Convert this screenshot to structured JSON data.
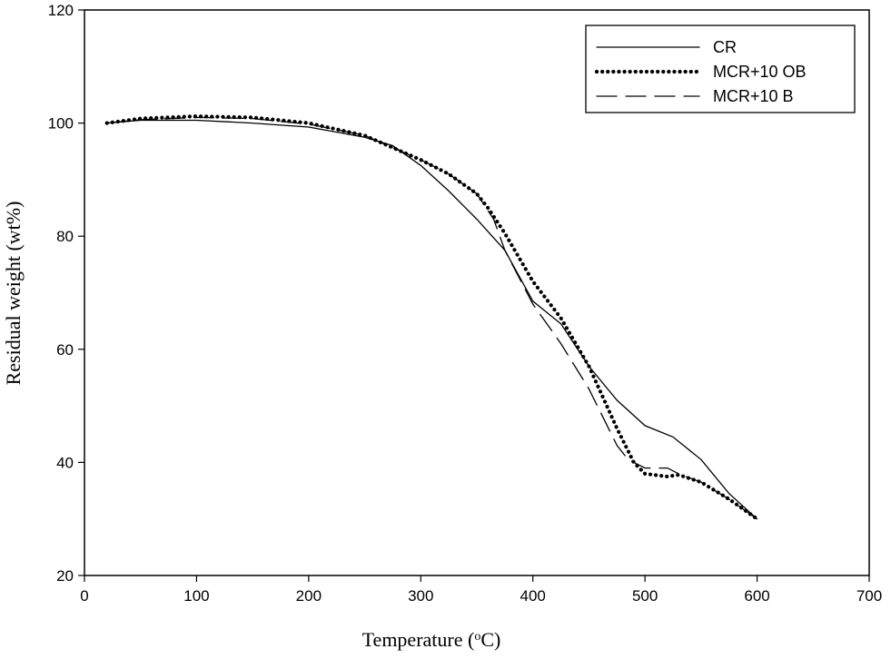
{
  "chart_data": {
    "type": "line",
    "title": "",
    "xlabel": "Temperature (",
    "xlabel_sup": "o",
    "xlabel_end": "C)",
    "ylabel": "Residual weight (wt%)",
    "xlim": [
      0,
      700
    ],
    "ylim": [
      20,
      120
    ],
    "xticks": [
      0,
      100,
      200,
      300,
      400,
      500,
      600,
      700
    ],
    "yticks": [
      20,
      40,
      60,
      80,
      100,
      120
    ],
    "grid": false,
    "legend_placement": "top-right",
    "series": [
      {
        "name": "CR",
        "style": "solid",
        "x": [
          20,
          50,
          100,
          150,
          200,
          250,
          275,
          300,
          325,
          350,
          375,
          400,
          425,
          450,
          475,
          500,
          525,
          550,
          575,
          600
        ],
        "y": [
          100,
          100.5,
          100.5,
          100,
          99.3,
          97.5,
          96,
          92.5,
          88,
          83,
          77.5,
          68.5,
          64.5,
          57,
          51,
          46.5,
          44.5,
          40.5,
          34.5,
          30
        ]
      },
      {
        "name": "MCR+10 OB",
        "style": "dotted",
        "x": [
          20,
          50,
          100,
          150,
          200,
          250,
          300,
          325,
          350,
          360,
          375,
          400,
          425,
          450,
          475,
          490,
          500,
          520,
          530,
          550,
          575,
          600
        ],
        "y": [
          100,
          100.8,
          101.2,
          101,
          100,
          97.8,
          93.5,
          91,
          87.5,
          85,
          80.5,
          72,
          65.5,
          57,
          46,
          40,
          38,
          37.5,
          37.8,
          36.5,
          33.5,
          30
        ]
      },
      {
        "name": "MCR+10 B",
        "style": "dashed",
        "x": [
          20,
          50,
          100,
          150,
          200,
          250,
          300,
          325,
          350,
          365,
          375,
          400,
          425,
          450,
          475,
          485,
          500,
          520,
          530,
          550,
          575,
          600
        ],
        "y": [
          100,
          100.6,
          101,
          100.8,
          99.8,
          97.8,
          93.5,
          91,
          87.5,
          83,
          77.5,
          68,
          61,
          53,
          43,
          40.5,
          39,
          39,
          38,
          36.5,
          33.5,
          30
        ]
      }
    ]
  }
}
